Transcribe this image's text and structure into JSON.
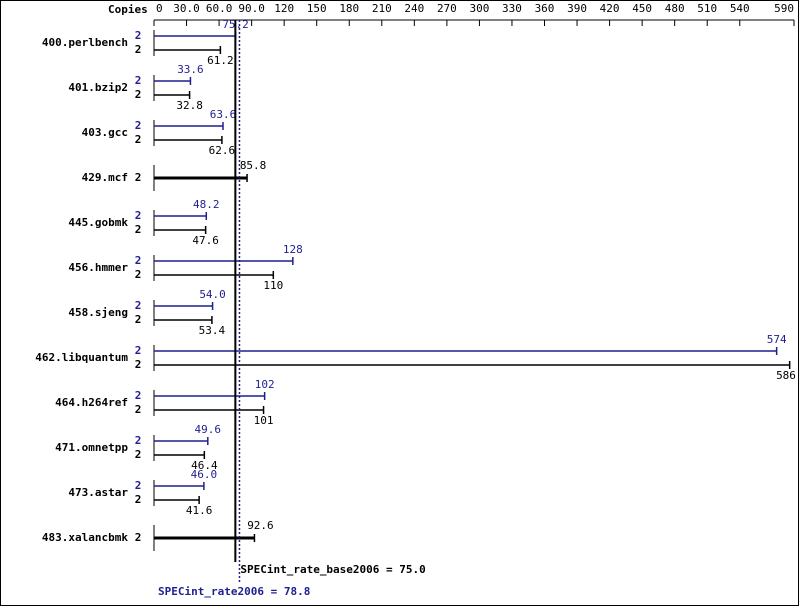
{
  "chart_data": {
    "type": "bar",
    "copies_header": "Copies",
    "categories": [
      "400.perlbench",
      "401.bzip2",
      "403.gcc",
      "429.mcf",
      "445.gobmk",
      "456.hmmer",
      "458.sjeng",
      "462.libquantum",
      "464.h264ref",
      "471.omnetpp",
      "473.astar",
      "483.xalancbmk"
    ],
    "series": [
      {
        "role": "peak",
        "color": "#1f1f8f",
        "copies": [
          2,
          2,
          2,
          null,
          2,
          2,
          2,
          2,
          2,
          2,
          2,
          null
        ],
        "values": [
          75.2,
          33.6,
          63.6,
          null,
          48.2,
          128,
          54.0,
          574,
          102,
          49.6,
          46.0,
          null
        ],
        "value_labels": [
          "75.2",
          "33.6",
          "63.6",
          null,
          "48.2",
          "128",
          "54.0",
          "574",
          "102",
          "49.6",
          "46.0",
          null
        ]
      },
      {
        "role": "base",
        "color": "#000000",
        "copies": [
          2,
          2,
          2,
          2,
          2,
          2,
          2,
          2,
          2,
          2,
          2,
          2
        ],
        "values": [
          61.2,
          32.8,
          62.6,
          85.8,
          47.6,
          110,
          53.4,
          586,
          101,
          46.4,
          41.6,
          92.6
        ],
        "value_labels": [
          "61.2",
          "32.8",
          "62.6",
          "85.8",
          "47.6",
          "110",
          "53.4",
          "586",
          "101",
          "46.4",
          "41.6",
          "92.6"
        ]
      }
    ],
    "xlim": [
      0,
      590
    ],
    "xticks": [
      0,
      {
        "value": 30,
        "label": "30.0"
      },
      {
        "value": 60,
        "label": "60.0"
      },
      {
        "value": 90,
        "label": "90.0"
      },
      120,
      150,
      180,
      210,
      240,
      270,
      300,
      330,
      360,
      390,
      420,
      450,
      480,
      510,
      540,
      590
    ],
    "reference_lines": [
      {
        "label": "SPECint_rate_base2006 = 75.0",
        "value": 75.0,
        "color": "#000000",
        "dashed": false
      },
      {
        "label": "SPECint_rate2006 = 78.8",
        "value": 78.8,
        "color": "#1f1f8f",
        "dashed": true
      }
    ]
  }
}
